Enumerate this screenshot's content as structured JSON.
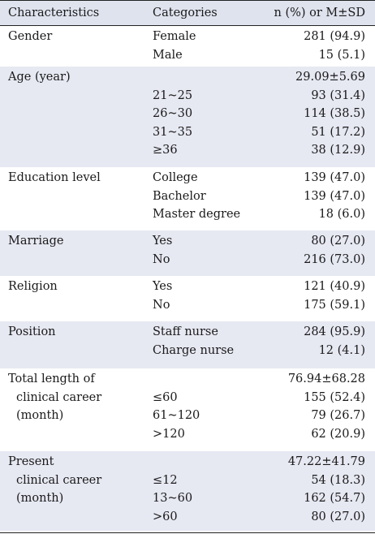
{
  "header": {
    "characteristics": "Characteristics",
    "categories": "Categories",
    "value": "n (%) or M±SD"
  },
  "groups": [
    {
      "label": [
        "Gender"
      ],
      "rows": [
        {
          "category": "Female",
          "value": "281 (94.9)"
        },
        {
          "category": "Male",
          "value": "15 (5.1)"
        }
      ]
    },
    {
      "label": [
        "Age (year)"
      ],
      "rows": [
        {
          "category": "",
          "value": "29.09±5.69"
        },
        {
          "category": "21~25",
          "value": "93 (31.4)"
        },
        {
          "category": "26~30",
          "value": "114 (38.5)"
        },
        {
          "category": "31~35",
          "value": "51 (17.2)"
        },
        {
          "category": "≥36",
          "value": "38 (12.9)"
        }
      ]
    },
    {
      "label": [
        "Education level"
      ],
      "rows": [
        {
          "category": "College",
          "value": "139 (47.0)"
        },
        {
          "category": "Bachelor",
          "value": "139 (47.0)"
        },
        {
          "category": "Master degree",
          "value": "18 (6.0)"
        }
      ]
    },
    {
      "label": [
        "Marriage"
      ],
      "rows": [
        {
          "category": "Yes",
          "value": "80 (27.0)"
        },
        {
          "category": "No",
          "value": "216 (73.0)"
        }
      ]
    },
    {
      "label": [
        "Religion"
      ],
      "rows": [
        {
          "category": "Yes",
          "value": "121 (40.9)"
        },
        {
          "category": "No",
          "value": "175 (59.1)"
        }
      ]
    },
    {
      "label": [
        "Position"
      ],
      "rows": [
        {
          "category": "Staff nurse",
          "value": "284 (95.9)"
        },
        {
          "category": "Charge nurse",
          "value": "12 (4.1)"
        }
      ]
    },
    {
      "label": [
        "Total length of",
        "clinical career",
        "(month)"
      ],
      "rows": [
        {
          "category": "",
          "value": "76.94±68.28"
        },
        {
          "category": "≤60",
          "value": "155 (52.4)"
        },
        {
          "category": "61~120",
          "value": "79 (26.7)"
        },
        {
          "category": ">120",
          "value": "62 (20.9)"
        }
      ]
    },
    {
      "label": [
        "Present",
        "clinical career",
        "(month)"
      ],
      "rows": [
        {
          "category": "",
          "value": "47.22±41.79"
        },
        {
          "category": "≤12",
          "value": "54 (18.3)"
        },
        {
          "category": "13~60",
          "value": "162 (54.7)"
        },
        {
          "category": ">60",
          "value": "80 (27.0)"
        }
      ]
    }
  ]
}
